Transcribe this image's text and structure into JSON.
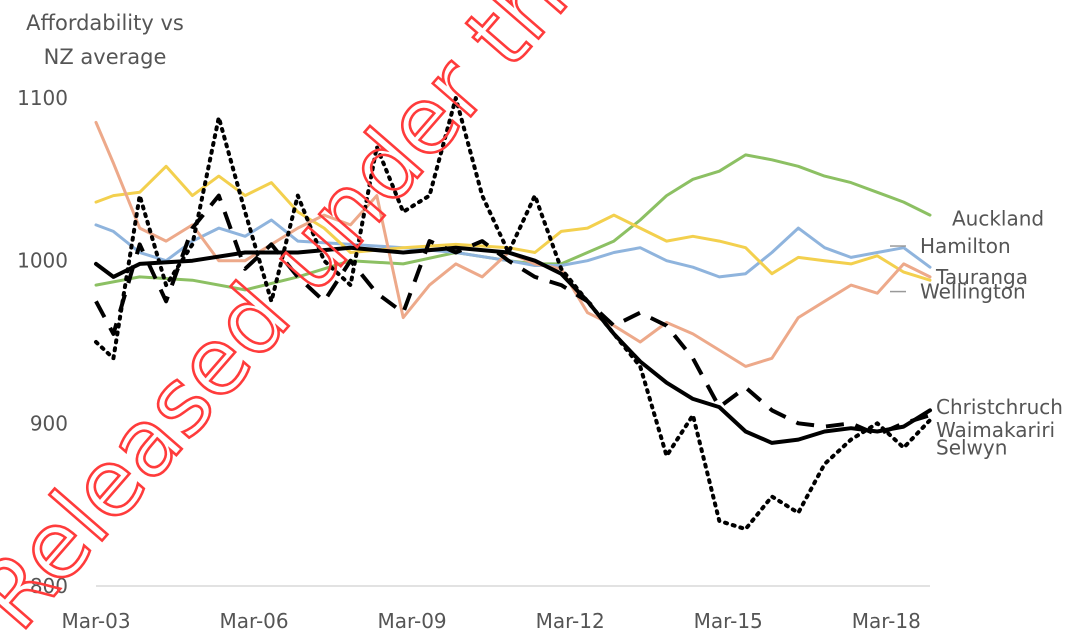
{
  "chart_data": {
    "type": "line",
    "ylabel": "Affordability vs NZ average",
    "ylabel_lines": [
      "Affordability vs",
      "NZ average"
    ],
    "ylim": [
      800,
      1100
    ],
    "yticks": [
      800,
      900,
      1000,
      1100
    ],
    "xlim": [
      2003.17,
      2019.0
    ],
    "xticks": [
      {
        "label": "Mar-03",
        "value": 2003.17
      },
      {
        "label": "Mar-06",
        "value": 2006.17
      },
      {
        "label": "Mar-09",
        "value": 2009.17
      },
      {
        "label": "Mar-12",
        "value": 2012.17
      },
      {
        "label": "Mar-15",
        "value": 2015.17
      },
      {
        "label": "Mar-18",
        "value": 2018.17
      }
    ],
    "grid": false,
    "series": [
      {
        "name": "Auckland",
        "color": "#8cc063",
        "style": "solid",
        "points": [
          [
            2003.17,
            985
          ],
          [
            2004.0,
            990
          ],
          [
            2005.0,
            988
          ],
          [
            2006.0,
            982
          ],
          [
            2007.0,
            990
          ],
          [
            2008.0,
            1000
          ],
          [
            2009.0,
            998
          ],
          [
            2010.0,
            1005
          ],
          [
            2011.0,
            1000
          ],
          [
            2011.5,
            998
          ],
          [
            2012.0,
            998
          ],
          [
            2012.5,
            1005
          ],
          [
            2013.0,
            1012
          ],
          [
            2013.5,
            1025
          ],
          [
            2014.0,
            1040
          ],
          [
            2014.5,
            1050
          ],
          [
            2015.0,
            1055
          ],
          [
            2015.5,
            1065
          ],
          [
            2016.0,
            1062
          ],
          [
            2016.5,
            1058
          ],
          [
            2017.0,
            1052
          ],
          [
            2017.5,
            1048
          ],
          [
            2018.0,
            1042
          ],
          [
            2018.5,
            1036
          ],
          [
            2019.0,
            1028
          ]
        ]
      },
      {
        "name": "Hamilton",
        "color": "#8fb4dd",
        "style": "solid",
        "points": [
          [
            2003.17,
            1022
          ],
          [
            2003.5,
            1018
          ],
          [
            2004.0,
            1005
          ],
          [
            2004.5,
            1000
          ],
          [
            2005.0,
            1012
          ],
          [
            2005.5,
            1020
          ],
          [
            2006.0,
            1015
          ],
          [
            2006.5,
            1025
          ],
          [
            2007.0,
            1012
          ],
          [
            2008.0,
            1010
          ],
          [
            2009.0,
            1008
          ],
          [
            2010.0,
            1005
          ],
          [
            2011.0,
            1000
          ],
          [
            2011.5,
            997
          ],
          [
            2012.0,
            997
          ],
          [
            2012.5,
            1000
          ],
          [
            2013.0,
            1005
          ],
          [
            2013.5,
            1008
          ],
          [
            2014.0,
            1000
          ],
          [
            2014.5,
            996
          ],
          [
            2015.0,
            990
          ],
          [
            2015.5,
            992
          ],
          [
            2016.0,
            1005
          ],
          [
            2016.5,
            1020
          ],
          [
            2017.0,
            1008
          ],
          [
            2017.5,
            1002
          ],
          [
            2018.0,
            1005
          ],
          [
            2018.5,
            1008
          ],
          [
            2019.0,
            996
          ]
        ]
      },
      {
        "name": "Tauranga",
        "color": "#f3d04e",
        "style": "solid",
        "points": [
          [
            2003.17,
            1036
          ],
          [
            2003.5,
            1040
          ],
          [
            2004.0,
            1042
          ],
          [
            2004.5,
            1058
          ],
          [
            2005.0,
            1040
          ],
          [
            2005.5,
            1052
          ],
          [
            2006.0,
            1040
          ],
          [
            2006.5,
            1048
          ],
          [
            2007.0,
            1030
          ],
          [
            2007.5,
            1020
          ],
          [
            2008.0,
            1005
          ],
          [
            2009.0,
            1008
          ],
          [
            2010.0,
            1010
          ],
          [
            2011.0,
            1008
          ],
          [
            2011.5,
            1005
          ],
          [
            2012.0,
            1018
          ],
          [
            2012.5,
            1020
          ],
          [
            2013.0,
            1028
          ],
          [
            2013.5,
            1020
          ],
          [
            2014.0,
            1012
          ],
          [
            2014.5,
            1015
          ],
          [
            2015.0,
            1012
          ],
          [
            2015.5,
            1008
          ],
          [
            2016.0,
            992
          ],
          [
            2016.5,
            1002
          ],
          [
            2017.0,
            1000
          ],
          [
            2017.5,
            998
          ],
          [
            2018.0,
            1003
          ],
          [
            2018.5,
            993
          ],
          [
            2019.0,
            988
          ]
        ]
      },
      {
        "name": "Wellington",
        "color": "#eda98a",
        "style": "solid",
        "points": [
          [
            2003.17,
            1085
          ],
          [
            2003.5,
            1060
          ],
          [
            2004.0,
            1020
          ],
          [
            2004.5,
            1012
          ],
          [
            2005.0,
            1022
          ],
          [
            2005.5,
            1000
          ],
          [
            2006.0,
            1000
          ],
          [
            2006.5,
            1010
          ],
          [
            2007.0,
            1020
          ],
          [
            2007.5,
            1028
          ],
          [
            2008.0,
            1022
          ],
          [
            2008.5,
            1040
          ],
          [
            2009.0,
            965
          ],
          [
            2009.5,
            985
          ],
          [
            2010.0,
            998
          ],
          [
            2010.5,
            990
          ],
          [
            2011.0,
            1005
          ],
          [
            2011.5,
            998
          ],
          [
            2012.0,
            995
          ],
          [
            2012.5,
            968
          ],
          [
            2013.0,
            960
          ],
          [
            2013.5,
            950
          ],
          [
            2014.0,
            962
          ],
          [
            2014.5,
            955
          ],
          [
            2015.0,
            945
          ],
          [
            2015.5,
            935
          ],
          [
            2016.0,
            940
          ],
          [
            2016.5,
            965
          ],
          [
            2017.0,
            975
          ],
          [
            2017.5,
            985
          ],
          [
            2018.0,
            980
          ],
          [
            2018.5,
            998
          ],
          [
            2019.0,
            990
          ]
        ]
      },
      {
        "name": "Christchruch",
        "color": "#000000",
        "style": "solid",
        "points": [
          [
            2003.17,
            998
          ],
          [
            2003.5,
            990
          ],
          [
            2004.0,
            998
          ],
          [
            2005.0,
            1000
          ],
          [
            2006.0,
            1005
          ],
          [
            2007.0,
            1005
          ],
          [
            2008.0,
            1008
          ],
          [
            2009.0,
            1005
          ],
          [
            2010.0,
            1008
          ],
          [
            2011.0,
            1005
          ],
          [
            2011.5,
            1000
          ],
          [
            2012.0,
            992
          ],
          [
            2012.5,
            975
          ],
          [
            2013.0,
            955
          ],
          [
            2013.5,
            938
          ],
          [
            2014.0,
            925
          ],
          [
            2014.5,
            915
          ],
          [
            2015.0,
            910
          ],
          [
            2015.5,
            895
          ],
          [
            2016.0,
            888
          ],
          [
            2016.5,
            890
          ],
          [
            2017.0,
            895
          ],
          [
            2017.5,
            897
          ],
          [
            2018.0,
            895
          ],
          [
            2018.5,
            898
          ],
          [
            2019.0,
            908
          ]
        ]
      },
      {
        "name": "Waimakariri",
        "color": "#000000",
        "style": "dashed",
        "points": [
          [
            2003.17,
            975
          ],
          [
            2003.5,
            955
          ],
          [
            2004.0,
            1010
          ],
          [
            2004.5,
            975
          ],
          [
            2005.0,
            1020
          ],
          [
            2005.5,
            1040
          ],
          [
            2006.0,
            995
          ],
          [
            2006.5,
            1010
          ],
          [
            2007.0,
            990
          ],
          [
            2007.5,
            975
          ],
          [
            2008.0,
            1000
          ],
          [
            2008.5,
            980
          ],
          [
            2009.0,
            968
          ],
          [
            2009.5,
            1012
          ],
          [
            2010.0,
            1005
          ],
          [
            2010.5,
            1012
          ],
          [
            2011.0,
            1000
          ],
          [
            2011.5,
            990
          ],
          [
            2012.0,
            985
          ],
          [
            2012.5,
            975
          ],
          [
            2013.0,
            960
          ],
          [
            2013.5,
            968
          ],
          [
            2014.0,
            960
          ],
          [
            2014.5,
            940
          ],
          [
            2015.0,
            910
          ],
          [
            2015.5,
            922
          ],
          [
            2016.0,
            908
          ],
          [
            2016.5,
            900
          ],
          [
            2017.0,
            898
          ],
          [
            2017.5,
            900
          ],
          [
            2018.0,
            893
          ],
          [
            2018.5,
            900
          ],
          [
            2019.0,
            905
          ]
        ]
      },
      {
        "name": "Selwyn",
        "color": "#000000",
        "style": "dotted",
        "points": [
          [
            2003.17,
            950
          ],
          [
            2003.5,
            940
          ],
          [
            2004.0,
            1040
          ],
          [
            2004.5,
            985
          ],
          [
            2005.0,
            1010
          ],
          [
            2005.5,
            1088
          ],
          [
            2006.0,
            1030
          ],
          [
            2006.5,
            975
          ],
          [
            2007.0,
            1040
          ],
          [
            2007.5,
            1000
          ],
          [
            2008.0,
            985
          ],
          [
            2008.5,
            1070
          ],
          [
            2009.0,
            1030
          ],
          [
            2009.5,
            1040
          ],
          [
            2010.0,
            1100
          ],
          [
            2010.5,
            1040
          ],
          [
            2011.0,
            1005
          ],
          [
            2011.5,
            1040
          ],
          [
            2012.0,
            995
          ],
          [
            2012.5,
            975
          ],
          [
            2013.0,
            955
          ],
          [
            2013.5,
            935
          ],
          [
            2014.0,
            880
          ],
          [
            2014.5,
            905
          ],
          [
            2015.0,
            840
          ],
          [
            2015.5,
            835
          ],
          [
            2016.0,
            855
          ],
          [
            2016.5,
            845
          ],
          [
            2017.0,
            875
          ],
          [
            2017.5,
            890
          ],
          [
            2018.0,
            900
          ],
          [
            2018.5,
            885
          ],
          [
            2019.0,
            902
          ]
        ]
      }
    ],
    "labels": [
      {
        "text": "Auckland",
        "series": "Auckland",
        "data_y": 1026,
        "leader": false
      },
      {
        "text": "Hamilton",
        "series": "Hamilton",
        "data_y": 1009,
        "leader": true
      },
      {
        "text": "Tauranga",
        "series": "Tauranga",
        "data_y": 990,
        "leader": false
      },
      {
        "text": "Wellington",
        "series": "Wellington",
        "data_y": 981,
        "leader": true
      },
      {
        "text": "Christchruch",
        "series": "Christchruch",
        "data_y": 910,
        "leader": false
      },
      {
        "text": "Waimakariri",
        "series": "Waimakariri",
        "data_y": 896,
        "leader": false
      },
      {
        "text": "Selwyn",
        "series": "Selwyn",
        "data_y": 885,
        "leader": false
      }
    ]
  },
  "watermark": {
    "text": "Released under the Official Information Act",
    "color": "#ff3b3b"
  }
}
